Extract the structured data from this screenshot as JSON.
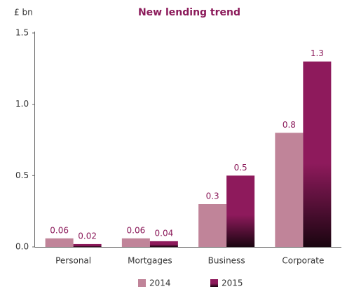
{
  "chart_data": {
    "type": "bar",
    "title": "New lending trend",
    "y_label": "£ bn",
    "categories": [
      "Personal",
      "Mortgages",
      "Business",
      "Corporate"
    ],
    "series": [
      {
        "name": "2014",
        "color": "#c08499",
        "values": [
          0.06,
          0.06,
          0.3,
          0.8
        ]
      },
      {
        "name": "2015",
        "color": "#8e1a5c",
        "values": [
          0.02,
          0.04,
          0.5,
          1.3
        ]
      }
    ],
    "ylim": [
      0,
      1.5
    ],
    "yticks": [
      {
        "value": 0,
        "label": "0.0"
      },
      0.5,
      {
        "value": 1,
        "label": "1.0"
      },
      1.5
    ],
    "legend": "bottom"
  }
}
